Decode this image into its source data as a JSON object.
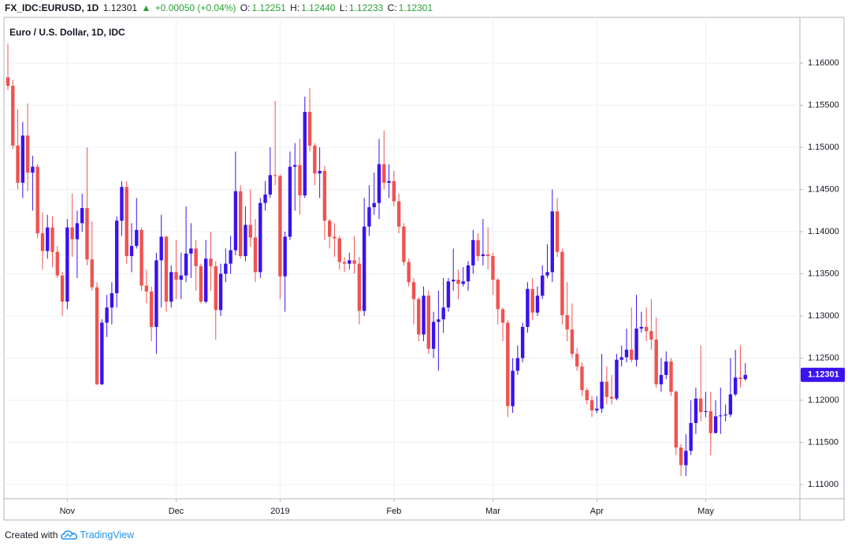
{
  "header": {
    "symbol": "FX_IDC:EURUSD, 1D",
    "last": "1.12301",
    "arrow": "▲",
    "change": "+0.00050 (+0.04%)",
    "o_label": "O:",
    "o": "1.12251",
    "h_label": "H:",
    "h": "1.12440",
    "l_label": "L:",
    "l": "1.12233",
    "c_label": "C:",
    "c": "1.12301"
  },
  "footer": {
    "created": "Created with",
    "brand": "TradingView"
  },
  "chart_data": {
    "type": "candlestick",
    "title": "Euro / U.S. Dollar, 1D, IDC",
    "up_color": "#3a12ee",
    "down_color": "#ef5350",
    "grid": true,
    "ylim": [
      1.10832,
      1.16542
    ],
    "yticks": [
      {
        "value": 1.11,
        "label": "1.11000"
      },
      {
        "value": 1.115,
        "label": "1.11500"
      },
      {
        "value": 1.12,
        "label": "1.12000"
      },
      {
        "value": 1.125,
        "label": "1.12500"
      },
      {
        "value": 1.13,
        "label": "1.13000"
      },
      {
        "value": 1.135,
        "label": "1.13500"
      },
      {
        "value": 1.14,
        "label": "1.14000"
      },
      {
        "value": 1.145,
        "label": "1.14500"
      },
      {
        "value": 1.15,
        "label": "1.15000"
      },
      {
        "value": 1.155,
        "label": "1.15500"
      },
      {
        "value": 1.16,
        "label": "1.16000"
      }
    ],
    "categories": [
      null,
      null,
      null,
      null,
      null,
      null,
      null,
      null,
      null,
      null,
      null,
      null,
      "Nov",
      null,
      null,
      null,
      null,
      null,
      null,
      null,
      null,
      null,
      null,
      null,
      null,
      null,
      null,
      null,
      null,
      null,
      null,
      null,
      null,
      null,
      "Dec",
      null,
      null,
      null,
      null,
      null,
      null,
      null,
      null,
      null,
      null,
      null,
      null,
      null,
      null,
      null,
      null,
      null,
      null,
      null,
      null,
      "2019",
      null,
      null,
      null,
      null,
      null,
      null,
      null,
      null,
      null,
      null,
      null,
      null,
      null,
      null,
      null,
      null,
      null,
      null,
      null,
      null,
      null,
      null,
      "Feb",
      null,
      null,
      null,
      null,
      null,
      null,
      null,
      null,
      null,
      null,
      null,
      null,
      null,
      null,
      null,
      null,
      null,
      null,
      null,
      "Mar",
      null,
      null,
      null,
      null,
      null,
      null,
      null,
      null,
      null,
      null,
      null,
      null,
      null,
      null,
      null,
      null,
      null,
      null,
      null,
      null,
      "Apr",
      null,
      null,
      null,
      null,
      null,
      null,
      null,
      null,
      null,
      null,
      null,
      null,
      null,
      null,
      null,
      null,
      null,
      null,
      null,
      null,
      null,
      "May",
      null,
      null,
      null,
      null,
      null,
      null,
      null,
      null
    ],
    "open": [
      1.1583,
      1.1573,
      1.1502,
      1.1458,
      1.1514,
      1.147,
      1.1477,
      1.1398,
      1.1377,
      1.1405,
      1.1376,
      1.1348,
      1.1317,
      1.1405,
      1.1391,
      1.141,
      1.1428,
      1.1367,
      1.1334,
      1.1219,
      1.1292,
      1.131,
      1.1327,
      1.1413,
      1.1453,
      1.1371,
      1.1383,
      1.1402,
      1.1336,
      1.1329,
      1.1287,
      1.1366,
      1.1394,
      1.1317,
      1.1352,
      1.1343,
      1.1348,
      1.1374,
      1.138,
      1.1359,
      1.1317,
      1.1368,
      1.1359,
      1.1307,
      1.135,
      1.1362,
      1.1378,
      1.1448,
      1.1371,
      1.1408,
      1.1393,
      1.1352,
      1.1434,
      1.1444,
      1.1467,
      1.1466,
      1.1347,
      1.1394,
      1.1477,
      1.1479,
      1.1443,
      1.1542,
      1.1502,
      1.1469,
      1.1472,
      1.1413,
      1.1394,
      1.1392,
      1.1364,
      1.1362,
      1.1366,
      1.1362,
      1.1306,
      1.1406,
      1.1429,
      1.1434,
      1.148,
      1.1458,
      1.146,
      1.1436,
      1.1406,
      1.1364,
      1.134,
      1.132,
      1.1278,
      1.1324,
      1.1261,
      1.1293,
      1.1296,
      1.131,
      1.1341,
      1.1343,
      1.1338,
      1.1341,
      1.136,
      1.139,
      1.1371,
      1.1373,
      1.1371,
      1.1343,
      1.1308,
      1.1292,
      1.1193,
      1.1235,
      1.125,
      1.1287,
      1.1332,
      1.1304,
      1.1324,
      1.1348,
      1.1352,
      1.1424,
      1.1376,
      1.1301,
      1.1284,
      1.1255,
      1.124,
      1.1212,
      1.12,
      1.1188,
      1.119,
      1.1222,
      1.1204,
      1.1202,
      1.1248,
      1.1251,
      1.126,
      1.1248,
      1.1285,
      1.1287,
      1.1282,
      1.1272,
      1.1219,
      1.123,
      1.1246,
      1.121,
      1.1144,
      1.1123,
      1.114,
      1.1173,
      1.1202,
      1.1186,
      1.1187,
      1.1161,
      1.1181,
      1.1182,
      1.1183,
      1.1207,
      1.1227,
      1.12251
    ],
    "high": [
      1.1623,
      1.158,
      1.1545,
      1.153,
      1.1552,
      1.149,
      1.148,
      1.1423,
      1.142,
      1.1418,
      1.1383,
      1.1352,
      1.1415,
      1.1445,
      1.1425,
      1.1445,
      1.15,
      1.1412,
      1.134,
      1.1296,
      1.1325,
      1.134,
      1.1418,
      1.146,
      1.146,
      1.141,
      1.144,
      1.1405,
      1.1355,
      1.1335,
      1.1375,
      1.142,
      1.1395,
      1.136,
      1.139,
      1.1375,
      1.143,
      1.141,
      1.139,
      1.1362,
      1.139,
      1.14,
      1.1365,
      1.1362,
      1.138,
      1.1395,
      1.1495,
      1.1455,
      1.143,
      1.145,
      1.1415,
      1.144,
      1.146,
      1.15,
      1.1555,
      1.1468,
      1.14,
      1.1495,
      1.1505,
      1.151,
      1.156,
      1.157,
      1.1505,
      1.15,
      1.1478,
      1.1415,
      1.141,
      1.1395,
      1.137,
      1.1375,
      1.1395,
      1.137,
      1.144,
      1.1455,
      1.147,
      1.151,
      1.152,
      1.148,
      1.1472,
      1.1445,
      1.141,
      1.1368,
      1.1345,
      1.1322,
      1.1335,
      1.133,
      1.1305,
      1.133,
      1.1345,
      1.1345,
      1.138,
      1.1355,
      1.1358,
      1.1365,
      1.1402,
      1.1398,
      1.1415,
      1.1405,
      1.1375,
      1.1345,
      1.131,
      1.1295,
      1.125,
      1.1265,
      1.1292,
      1.134,
      1.1345,
      1.1335,
      1.136,
      1.1385,
      1.145,
      1.144,
      1.138,
      1.134,
      1.1315,
      1.1262,
      1.1245,
      1.1215,
      1.1205,
      1.1205,
      1.1255,
      1.124,
      1.123,
      1.1255,
      1.1265,
      1.1285,
      1.131,
      1.1325,
      1.1305,
      1.131,
      1.132,
      1.1298,
      1.125,
      1.1258,
      1.125,
      1.1212,
      1.1148,
      1.116,
      1.12,
      1.1215,
      1.1265,
      1.121,
      1.121,
      1.12,
      1.1215,
      1.1195,
      1.125,
      1.126,
      1.1265,
      1.1244
    ],
    "low": [
      1.1568,
      1.1498,
      1.145,
      1.144,
      1.1448,
      1.1425,
      1.1392,
      1.1355,
      1.1368,
      1.1358,
      1.1345,
      1.13,
      1.1308,
      1.137,
      1.1345,
      1.14,
      1.136,
      1.133,
      1.1218,
      1.1218,
      1.1275,
      1.129,
      1.131,
      1.1395,
      1.1362,
      1.1352,
      1.138,
      1.133,
      1.1315,
      1.127,
      1.1255,
      1.131,
      1.1305,
      1.131,
      1.132,
      1.132,
      1.134,
      1.1345,
      1.133,
      1.1315,
      1.1315,
      1.133,
      1.1272,
      1.13,
      1.134,
      1.135,
      1.1372,
      1.1368,
      1.1365,
      1.1382,
      1.134,
      1.1345,
      1.1425,
      1.144,
      1.1455,
      1.132,
      1.1305,
      1.139,
      1.1425,
      1.142,
      1.144,
      1.1495,
      1.1455,
      1.144,
      1.139,
      1.138,
      1.137,
      1.1355,
      1.1352,
      1.1355,
      1.135,
      1.129,
      1.13,
      1.1395,
      1.142,
      1.1415,
      1.145,
      1.144,
      1.143,
      1.1398,
      1.136,
      1.1335,
      1.129,
      1.127,
      1.127,
      1.1255,
      1.125,
      1.1235,
      1.128,
      1.1305,
      1.133,
      1.132,
      1.1335,
      1.133,
      1.135,
      1.1365,
      1.136,
      1.1355,
      1.1325,
      1.129,
      1.127,
      1.118,
      1.1185,
      1.123,
      1.1245,
      1.128,
      1.1295,
      1.13,
      1.132,
      1.1345,
      1.134,
      1.137,
      1.129,
      1.127,
      1.125,
      1.1235,
      1.1205,
      1.1195,
      1.118,
      1.1185,
      1.1185,
      1.1195,
      1.1195,
      1.12,
      1.124,
      1.1245,
      1.1245,
      1.124,
      1.128,
      1.127,
      1.126,
      1.1215,
      1.121,
      1.1225,
      1.1205,
      1.1135,
      1.111,
      1.111,
      1.1135,
      1.116,
      1.1175,
      1.118,
      1.1135,
      1.1165,
      1.116,
      1.1175,
      1.118,
      1.1205,
      1.1215,
      1.12233
    ],
    "close": [
      1.1573,
      1.1502,
      1.1458,
      1.1514,
      1.147,
      1.1477,
      1.1398,
      1.1377,
      1.1405,
      1.1376,
      1.1348,
      1.1317,
      1.1405,
      1.1391,
      1.141,
      1.1428,
      1.1367,
      1.1334,
      1.1219,
      1.1292,
      1.131,
      1.1327,
      1.1413,
      1.1453,
      1.1371,
      1.1383,
      1.1402,
      1.1336,
      1.1329,
      1.1287,
      1.1366,
      1.1394,
      1.1317,
      1.1352,
      1.1343,
      1.1348,
      1.1374,
      1.138,
      1.1359,
      1.1317,
      1.1368,
      1.1359,
      1.1307,
      1.135,
      1.1362,
      1.1378,
      1.1448,
      1.1371,
      1.1408,
      1.1393,
      1.1352,
      1.1434,
      1.1444,
      1.1467,
      1.1466,
      1.1347,
      1.1394,
      1.1477,
      1.1479,
      1.1443,
      1.1542,
      1.1502,
      1.1469,
      1.1472,
      1.1413,
      1.1394,
      1.1392,
      1.1364,
      1.1362,
      1.1366,
      1.1362,
      1.1306,
      1.1406,
      1.1429,
      1.1434,
      1.148,
      1.1458,
      1.146,
      1.1436,
      1.1406,
      1.1364,
      1.134,
      1.132,
      1.1278,
      1.1324,
      1.1261,
      1.1293,
      1.1296,
      1.131,
      1.1341,
      1.1343,
      1.1338,
      1.1341,
      1.136,
      1.139,
      1.1371,
      1.1373,
      1.1371,
      1.1343,
      1.1308,
      1.1292,
      1.1193,
      1.1235,
      1.125,
      1.1287,
      1.1332,
      1.1304,
      1.1324,
      1.1348,
      1.1352,
      1.1424,
      1.1376,
      1.1301,
      1.1284,
      1.1255,
      1.124,
      1.1212,
      1.12,
      1.1188,
      1.119,
      1.1222,
      1.1204,
      1.1202,
      1.1248,
      1.1251,
      1.126,
      1.1248,
      1.1285,
      1.1287,
      1.1282,
      1.1272,
      1.1219,
      1.123,
      1.1246,
      1.121,
      1.1144,
      1.1123,
      1.114,
      1.1173,
      1.1202,
      1.1186,
      1.1187,
      1.1161,
      1.1181,
      1.1182,
      1.1183,
      1.1207,
      1.1227,
      1.12251,
      1.12301
    ]
  }
}
